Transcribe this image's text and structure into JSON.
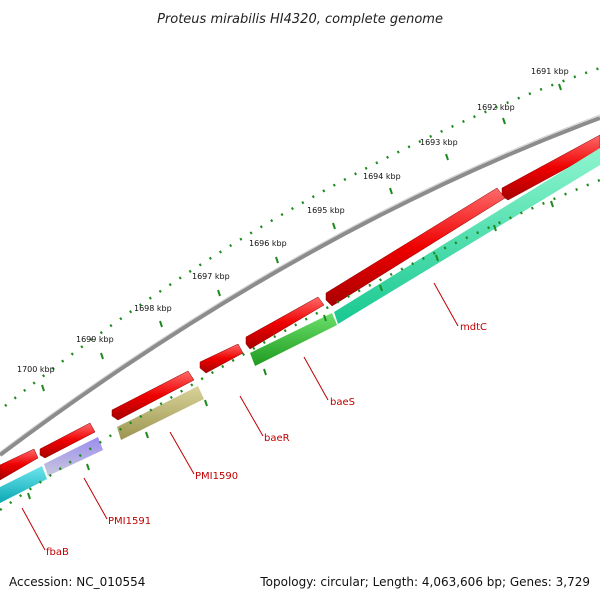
{
  "title": "Proteus mirabilis HI4320, complete genome",
  "footer": {
    "accession": "Accession: NC_010554",
    "summary": "Topology: circular; Length: 4,063,606 bp; Genes: 3,729"
  },
  "scale_labels": [
    "1691 kbp",
    "1692 kbp",
    "1693 kbp",
    "1694 kbp",
    "1695 kbp",
    "1696 kbp",
    "1697 kbp",
    "1698 kbp",
    "1699 kbp",
    "1700 kbp"
  ],
  "gene_labels": [
    "mdtC",
    "baeS",
    "baeR",
    "PMI1590",
    "PMI1591",
    "fbaB"
  ],
  "colors": {
    "backbone": "#8c8c8c",
    "forward_cds": "#ee0000",
    "reverse_teal": "#2fe6a6",
    "reverse_green": "#36c036",
    "reverse_olive": "#b7b06a",
    "reverse_purple": "#7060d0",
    "reverse_cyan": "#18c8d0",
    "tick_green": "#1f8a1f",
    "label_red": "#c00000"
  }
}
